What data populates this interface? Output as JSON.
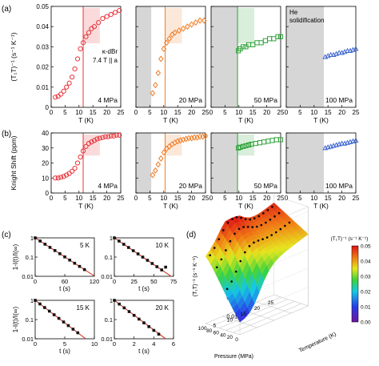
{
  "panel_letters": [
    "(a)",
    "(b)",
    "(c)",
    "(d)"
  ],
  "colors": {
    "p4": "#e8343a",
    "p20": "#f07d26",
    "p50": "#2fa23a",
    "p100": "#3e66d0",
    "fit_line": "#d63a2a",
    "shade": "#d6d6d6"
  },
  "chart_data": [
    {
      "id": "a",
      "type": "scatter",
      "xlabel": "T (K)",
      "ylabel": "(T₁T)⁻¹ (s⁻¹ K⁻¹)",
      "xlim": [
        0,
        25
      ],
      "ylim": [
        0,
        0.05
      ],
      "xticks": [
        0,
        5,
        10,
        15,
        20,
        25
      ],
      "yticks": [
        "0",
        "0.01",
        "0.02",
        "0.03",
        "0.04",
        "0.05"
      ],
      "sample_note": [
        "κ-dBr",
        "7.4 T || a"
      ],
      "panels": [
        {
          "label": "4 MPa",
          "color_key": "p4",
          "marker": "circle",
          "shade_upto": null,
          "vline": 11.5,
          "x": [
            1.5,
            2.5,
            3.5,
            4.5,
            5.5,
            6.5,
            7.5,
            8.5,
            9.5,
            10.5,
            11.5,
            12.5,
            13.5,
            14.5,
            15.5,
            17,
            18.5,
            20,
            21.5,
            23,
            24.5
          ],
          "y": [
            0.005,
            0.0055,
            0.0065,
            0.008,
            0.01,
            0.012,
            0.015,
            0.019,
            0.024,
            0.029,
            0.032,
            0.035,
            0.037,
            0.039,
            0.04,
            0.042,
            0.044,
            0.045,
            0.046,
            0.047,
            0.048
          ]
        },
        {
          "label": "20 MPa",
          "color_key": "p20",
          "marker": "diamond",
          "shade_upto": 5.5,
          "vline": 10.5,
          "x": [
            6,
            7,
            8,
            9,
            10,
            11,
            12,
            13,
            14,
            15.5,
            17,
            18.5,
            20,
            21.5,
            23,
            24.5
          ],
          "y": [
            0.007,
            0.011,
            0.017,
            0.024,
            0.029,
            0.032,
            0.034,
            0.036,
            0.037,
            0.038,
            0.039,
            0.04,
            0.041,
            0.042,
            0.043,
            0.043
          ]
        },
        {
          "label": "50 MPa",
          "color_key": "p50",
          "marker": "square",
          "shade_upto": 9.5,
          "vline": 9.5,
          "x": [
            9.8,
            10.5,
            11.5,
            12.5,
            13.5,
            15,
            16.5,
            18,
            19.5,
            21,
            22.5,
            24,
            25
          ],
          "y": [
            0.028,
            0.029,
            0.03,
            0.03,
            0.031,
            0.031,
            0.032,
            0.032,
            0.033,
            0.034,
            0.034,
            0.035,
            0.035
          ]
        },
        {
          "label": "100 MPa",
          "color_key": "p100",
          "marker": "triangle",
          "shade_upto": 13.5,
          "vline": null,
          "note": [
            "He",
            "solidification"
          ],
          "x": [
            14,
            15,
            16,
            17,
            18,
            19,
            20,
            21,
            22,
            23,
            24,
            25
          ],
          "y": [
            0.025,
            0.0255,
            0.026,
            0.026,
            0.0265,
            0.027,
            0.027,
            0.0275,
            0.028,
            0.028,
            0.0285,
            0.029
          ]
        }
      ]
    },
    {
      "id": "b",
      "type": "scatter",
      "xlabel": "T (K)",
      "ylabel": "Knight Shift (ppm)",
      "xlim": [
        0,
        25
      ],
      "ylim": [
        0,
        40
      ],
      "xticks": [
        0,
        5,
        10,
        15,
        20,
        25
      ],
      "yticks": [
        "0",
        "10",
        "20",
        "30",
        "40"
      ],
      "panels": [
        {
          "label": "4 MPa",
          "color_key": "p4",
          "marker": "circle",
          "shade_upto": null,
          "vline": 11.5,
          "x": [
            1.5,
            2.5,
            3.5,
            4.5,
            5.5,
            6.5,
            7.5,
            8.5,
            9.5,
            10.5,
            11.5,
            12.5,
            13.5,
            14.5,
            15.5,
            16.5,
            17.5,
            18.5,
            19.5,
            20.5,
            21.5,
            22.5,
            23.5,
            24.5
          ],
          "y": [
            10,
            10,
            10.5,
            11,
            12,
            13,
            14.5,
            16.5,
            20,
            24,
            28,
            31,
            33,
            34,
            35,
            36,
            36.5,
            37,
            37.5,
            37.5,
            38,
            38,
            38.5,
            38.5
          ]
        },
        {
          "label": "20 MPa",
          "color_key": "p20",
          "marker": "diamond",
          "shade_upto": 5.5,
          "vline": 10.5,
          "x": [
            6,
            7,
            8,
            9,
            10,
            11,
            12,
            13,
            14,
            15,
            16,
            17,
            18,
            19,
            20,
            21,
            22,
            23,
            24,
            25
          ],
          "y": [
            12,
            15,
            19,
            23,
            27,
            29.5,
            31,
            32.5,
            33.5,
            34.5,
            35,
            35.5,
            36,
            36.5,
            36.5,
            37,
            37,
            37.5,
            37.5,
            38
          ]
        },
        {
          "label": "50 MPa",
          "color_key": "p50",
          "marker": "square",
          "shade_upto": 9.5,
          "vline": 9.5,
          "x": [
            9.8,
            10.5,
            11.5,
            12.5,
            13.5,
            14.5,
            16,
            17.5,
            19,
            20.5,
            22,
            23.5,
            25
          ],
          "y": [
            30,
            30.5,
            31,
            31.5,
            32,
            32.5,
            33,
            33.5,
            34,
            34.5,
            35,
            35.5,
            35.5
          ]
        },
        {
          "label": "100 MPa",
          "color_key": "p100",
          "marker": "triangle",
          "shade_upto": 13.5,
          "vline": null,
          "x": [
            14,
            15,
            16,
            17,
            18,
            19,
            20,
            21,
            22,
            23,
            24,
            25
          ],
          "y": [
            30,
            30.5,
            31,
            31.5,
            32,
            32.5,
            33,
            33,
            33.5,
            34,
            34.5,
            35
          ]
        }
      ]
    },
    {
      "id": "c",
      "type": "scatter",
      "scale_y": "log",
      "ylabel": "1-I(t)/I(∞)",
      "xlabel": "t (s)",
      "ylim": [
        0.01,
        1
      ],
      "yticks": [
        "0.01",
        "0.1",
        "1"
      ],
      "panels": [
        {
          "label": "5 K",
          "xlim": [
            0,
            120
          ],
          "xticks": [
            0,
            60,
            120
          ],
          "t": [
            0,
            10,
            20,
            30,
            40,
            50,
            60,
            70,
            80,
            90,
            100
          ],
          "fit_end": 120,
          "k": 0.038,
          "outlier": null
        },
        {
          "label": "10 K",
          "xlim": [
            0,
            75
          ],
          "xticks": [
            0,
            25,
            50,
            75
          ],
          "t": [
            0,
            6,
            12,
            18,
            24,
            30,
            36,
            42,
            48,
            54,
            60
          ],
          "fit_end": 72,
          "k": 0.064,
          "outlier": [
            65,
            0.03
          ]
        },
        {
          "label": "15 K",
          "xlim": [
            0,
            10
          ],
          "xticks": [
            0,
            5,
            10
          ],
          "t": [
            0,
            0.8,
            1.6,
            2.4,
            3.2,
            4,
            4.8,
            5.6,
            6.4,
            7.2
          ],
          "fit_end": 8.5,
          "k": 0.54,
          "outlier": null
        },
        {
          "label": "20 K",
          "xlim": [
            0,
            6
          ],
          "xticks": [
            0,
            2,
            4,
            6
          ],
          "t": [
            0,
            0.5,
            1,
            1.5,
            2,
            2.5,
            3,
            3.5,
            4,
            4.5
          ],
          "fit_end": 5.2,
          "k": 0.9,
          "outlier": null
        }
      ]
    },
    {
      "id": "d",
      "type": "surface",
      "zlabel": "(T₁T)⁻¹ (s⁻¹ K⁻¹)",
      "xlabel": "Pressure (MPa)",
      "ylabel": "Temperature (K)",
      "zticks": [
        "0.01",
        "0.02",
        "0.03",
        "0.04",
        "0.05"
      ],
      "xticks": [
        "0",
        "20",
        "40",
        "60",
        "80",
        "100"
      ],
      "yticks": [
        "5",
        "10",
        "15",
        "20",
        "25"
      ],
      "colorbar_title": "(T₁T)⁻¹ (s⁻¹ K⁻¹)",
      "colorbar_ticks": [
        "0.00",
        "0.01",
        "0.02",
        "0.03",
        "0.04",
        "0.05"
      ]
    }
  ]
}
